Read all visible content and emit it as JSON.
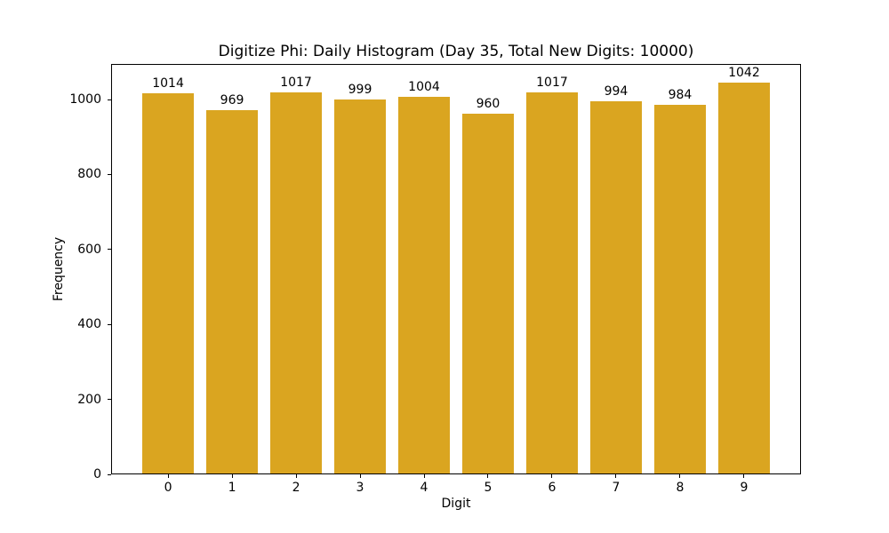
{
  "figure": {
    "title": "Digitize Phi: Daily Histogram (Day 35, Total New Digits: 10000)",
    "xlabel": "Digit",
    "ylabel": "Frequency"
  },
  "chart_data": {
    "type": "bar",
    "title": "Digitize Phi: Daily Histogram (Day 35, Total New Digits: 10000)",
    "xlabel": "Digit",
    "ylabel": "Frequency",
    "categories": [
      "0",
      "1",
      "2",
      "3",
      "4",
      "5",
      "6",
      "7",
      "8",
      "9"
    ],
    "values": [
      1014,
      969,
      1017,
      999,
      1004,
      960,
      1017,
      994,
      984,
      1042
    ],
    "value_labels_shown": true,
    "bar_color": "#DAA520",
    "yticks": [
      0,
      200,
      400,
      600,
      800,
      1000
    ],
    "ylim": [
      0,
      1095
    ],
    "grid": false,
    "legend": "none",
    "background_color": "#ffffff",
    "text_color": "#000000"
  }
}
